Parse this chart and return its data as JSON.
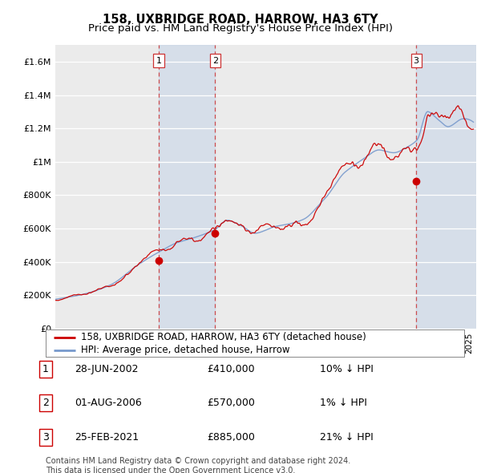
{
  "title": "158, UXBRIDGE ROAD, HARROW, HA3 6TY",
  "subtitle": "Price paid vs. HM Land Registry's House Price Index (HPI)",
  "ylim": [
    0,
    1700000
  ],
  "yticks": [
    0,
    200000,
    400000,
    600000,
    800000,
    1000000,
    1200000,
    1400000,
    1600000
  ],
  "ytick_labels": [
    "£0",
    "£200K",
    "£400K",
    "£600K",
    "£800K",
    "£1M",
    "£1.2M",
    "£1.4M",
    "£1.6M"
  ],
  "background_color": "#ffffff",
  "plot_bg_color": "#ebebeb",
  "hpi_color": "#7799cc",
  "price_color": "#cc0000",
  "sale_marker_color": "#cc0000",
  "shade_color": "#c5d5e8",
  "sales": [
    {
      "date": 2002.49,
      "price": 410000,
      "label": "1"
    },
    {
      "date": 2006.58,
      "price": 570000,
      "label": "2"
    },
    {
      "date": 2021.15,
      "price": 885000,
      "label": "3"
    }
  ],
  "sale_vline_color": "#cc3333",
  "legend_entries": [
    "158, UXBRIDGE ROAD, HARROW, HA3 6TY (detached house)",
    "HPI: Average price, detached house, Harrow"
  ],
  "table_rows": [
    {
      "num": "1",
      "date": "28-JUN-2002",
      "price": "£410,000",
      "hpi": "10% ↓ HPI"
    },
    {
      "num": "2",
      "date": "01-AUG-2006",
      "price": "£570,000",
      "hpi": "1% ↓ HPI"
    },
    {
      "num": "3",
      "date": "25-FEB-2021",
      "price": "£885,000",
      "hpi": "21% ↓ HPI"
    }
  ],
  "footer": "Contains HM Land Registry data © Crown copyright and database right 2024.\nThis data is licensed under the Open Government Licence v3.0.",
  "title_fontsize": 10.5,
  "subtitle_fontsize": 9.5,
  "tick_fontsize": 8,
  "legend_fontsize": 8.5,
  "table_fontsize": 9,
  "footer_fontsize": 7
}
